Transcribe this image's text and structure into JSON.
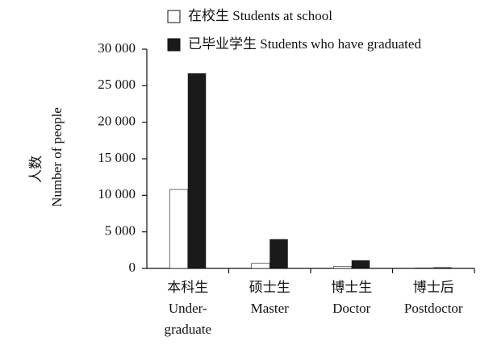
{
  "chart_data": {
    "type": "bar",
    "y_label": "人数",
    "y_label_en": "Number of people",
    "categories": [
      "本科生\nUnder-\ngraduate",
      "硕士生\nMaster",
      "博士生\nDoctor",
      "博士后\nPostdoctor"
    ],
    "series": [
      {
        "name": "在校生 Students at school",
        "color": "#ffffff",
        "values": [
          10800,
          700,
          250,
          50
        ]
      },
      {
        "name": "已毕业学生 Students who have graduated",
        "color": "#1a1a1a",
        "values": [
          26700,
          4000,
          1100,
          150
        ]
      }
    ],
    "ylim": [
      0,
      30000
    ],
    "yticks": [
      0,
      {
        "value": 5000,
        "label": "5 000"
      },
      {
        "value": 10000,
        "label": "10 000"
      },
      {
        "value": 15000,
        "label": "15 000"
      },
      {
        "value": 20000,
        "label": "20 000"
      },
      {
        "value": 25000,
        "label": "25 000"
      },
      {
        "value": 30000,
        "label": "30 000"
      }
    ]
  }
}
